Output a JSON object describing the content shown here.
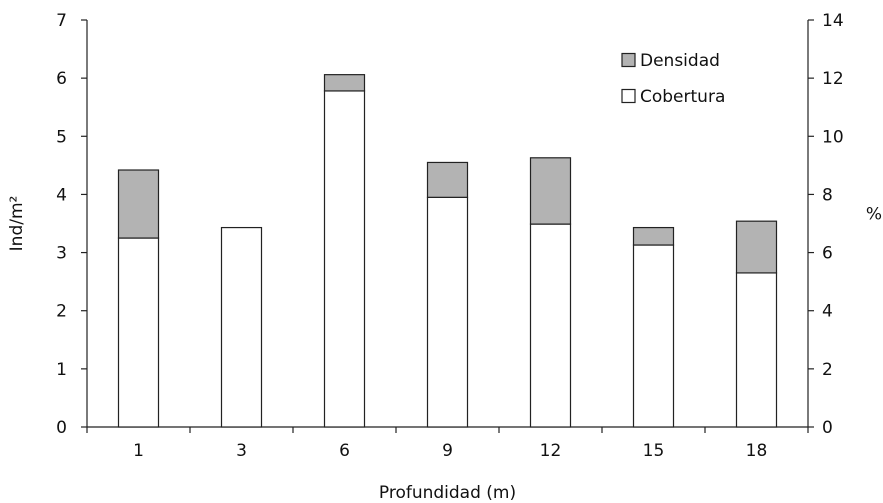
{
  "chart_data": {
    "type": "bar",
    "stacked": true,
    "categories": [
      "1",
      "3",
      "6",
      "9",
      "12",
      "15",
      "18"
    ],
    "series": [
      {
        "name": "Cobertura",
        "values": [
          3.25,
          3.43,
          5.78,
          3.95,
          3.49,
          3.13,
          2.65
        ]
      },
      {
        "name": "Densidad",
        "values": [
          1.17,
          0.0,
          0.28,
          0.6,
          1.14,
          0.3,
          0.89
        ]
      }
    ],
    "xlabel": "Profundidad (m)",
    "ylabel": "Ind/m²",
    "y2label": "%",
    "ylim": [
      0,
      7
    ],
    "y2lim": [
      0,
      14
    ],
    "yticks": [
      "0",
      "1",
      "2",
      "3",
      "4",
      "5",
      "6",
      "7"
    ],
    "y2ticks": [
      "0",
      "2",
      "4",
      "6",
      "8",
      "10",
      "12",
      "14"
    ],
    "grid": false,
    "legend": {
      "position": "top-right",
      "entries": [
        {
          "label": "Densidad",
          "color": "#b3b3b3"
        },
        {
          "label": "Cobertura",
          "color": "#ffffff"
        }
      ]
    },
    "colors": {
      "Densidad": "#b3b3b3",
      "Cobertura": "#ffffff",
      "stroke": "#222222"
    }
  }
}
